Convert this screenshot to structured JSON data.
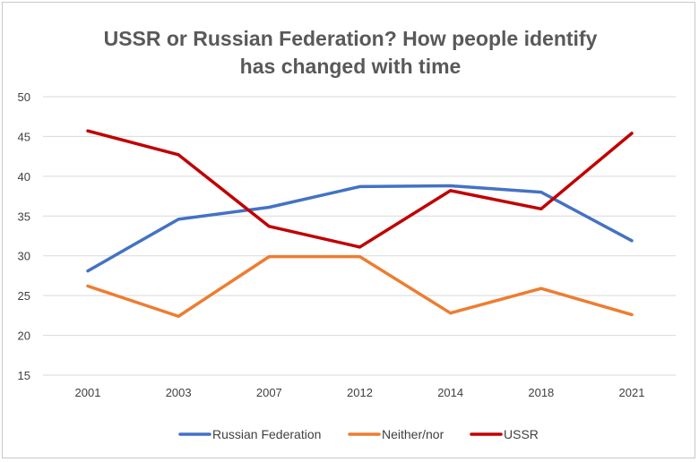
{
  "chart_data": {
    "type": "line",
    "title_line1": "USSR or Russian Federation? How people identify",
    "title_line2": "has changed with time",
    "categories": [
      "2001",
      "2003",
      "2007",
      "2012",
      "2014",
      "2018",
      "2021"
    ],
    "ylim": [
      15,
      50
    ],
    "yticks": [
      15,
      20,
      25,
      30,
      35,
      40,
      45,
      50
    ],
    "grid": true,
    "legend_position": "bottom",
    "series": [
      {
        "name": "Russian Federation",
        "color": "#4472c4",
        "values": [
          28.1,
          34.6,
          36.1,
          38.7,
          38.8,
          38.0,
          31.9
        ]
      },
      {
        "name": "Neither/nor",
        "color": "#ed7d31",
        "values": [
          26.2,
          22.4,
          29.9,
          29.9,
          22.8,
          25.9,
          22.6
        ]
      },
      {
        "name": "USSR",
        "color": "#c00000",
        "values": [
          45.7,
          42.7,
          33.7,
          31.1,
          38.2,
          35.9,
          45.4
        ]
      }
    ]
  }
}
